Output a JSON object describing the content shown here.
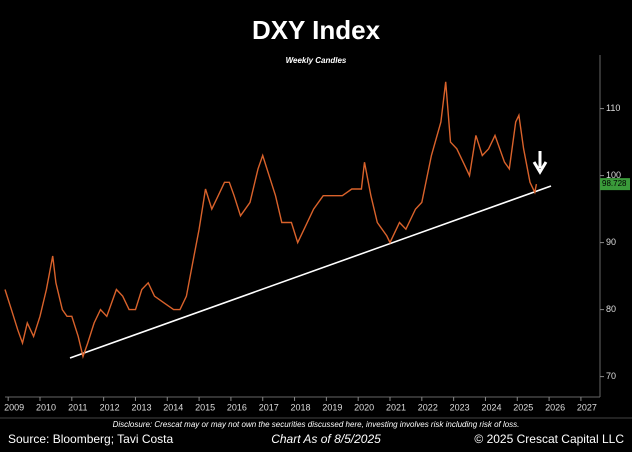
{
  "chart_data": {
    "type": "line",
    "title": "DXY Index",
    "subtitle": "Weekly Candles",
    "x": [
      2008.9,
      2009.1,
      2009.3,
      2009.45,
      2009.6,
      2009.8,
      2010.0,
      2010.2,
      2010.4,
      2010.5,
      2010.7,
      2010.85,
      2011.0,
      2011.2,
      2011.35,
      2011.5,
      2011.7,
      2011.9,
      2012.1,
      2012.4,
      2012.6,
      2012.8,
      2013.0,
      2013.2,
      2013.4,
      2013.6,
      2013.9,
      2014.2,
      2014.4,
      2014.6,
      2014.8,
      2015.0,
      2015.2,
      2015.4,
      2015.6,
      2015.8,
      2015.95,
      2016.1,
      2016.3,
      2016.6,
      2016.85,
      2017.0,
      2017.2,
      2017.4,
      2017.6,
      2017.9,
      2018.1,
      2018.3,
      2018.6,
      2018.9,
      2019.2,
      2019.5,
      2019.8,
      2020.1,
      2020.2,
      2020.4,
      2020.6,
      2020.9,
      2021.0,
      2021.3,
      2021.5,
      2021.8,
      2022.0,
      2022.3,
      2022.6,
      2022.75,
      2022.9,
      2023.1,
      2023.3,
      2023.5,
      2023.7,
      2023.9,
      2024.1,
      2024.3,
      2024.6,
      2024.75,
      2024.95,
      2025.05,
      2025.2,
      2025.4,
      2025.55,
      2025.6
    ],
    "series": [
      {
        "name": "DXY",
        "color": "#d9622b",
        "values": [
          83,
          80,
          77,
          75,
          78,
          76,
          79,
          83,
          88,
          84,
          80,
          79,
          79,
          76,
          73,
          75,
          78,
          80,
          79,
          83,
          82,
          80,
          80,
          83,
          84,
          82,
          81,
          80,
          80,
          82,
          87,
          92,
          98,
          95,
          97,
          99,
          99,
          97,
          94,
          96,
          101,
          103,
          100,
          97,
          93,
          93,
          90,
          92,
          95,
          97,
          97,
          97,
          98,
          98,
          102,
          97,
          93,
          91,
          90,
          93,
          92,
          95,
          96,
          103,
          108,
          114,
          105,
          104,
          102,
          100,
          106,
          103,
          104,
          106,
          102,
          101,
          108,
          109,
          104,
          99,
          97.5,
          98.728
        ]
      }
    ],
    "last_value": 98.728,
    "xlim": [
      2008.9,
      2027.6
    ],
    "xticks": [
      2009,
      2010,
      2011,
      2012,
      2013,
      2014,
      2015,
      2016,
      2017,
      2018,
      2019,
      2020,
      2021,
      2022,
      2023,
      2024,
      2025,
      2026,
      2027
    ],
    "ylim": [
      68,
      118
    ],
    "yticks": [
      70,
      80,
      90,
      100,
      110
    ],
    "disclosure": "Disclosure: Crescat may or may not own the securities discussed here, investing involves risk including risk of loss.",
    "source": "Source: Bloomberg; Tavi Costa",
    "chart_date": "Chart As of 8/5/2025",
    "copyright": "© 2025 Crescat Capital LLC"
  }
}
